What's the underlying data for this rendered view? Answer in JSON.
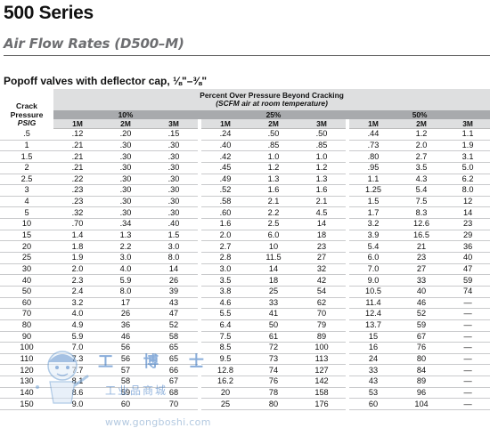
{
  "page": {
    "series_title": "500 Series",
    "subtitle": "Air Flow Rates (D500–M)",
    "section_title": "Popoff valves with deflector cap, ⅛\"–⅜\""
  },
  "table": {
    "crack_header": {
      "line1": "Crack",
      "line2": "Pressure",
      "line3": "PSIG"
    },
    "header_line1": "Percent Over Pressure Beyond Cracking",
    "header_line2": "(SCFM air at room temperature)",
    "groups": [
      "10%",
      "25%",
      "50%"
    ],
    "subcols": [
      "1M",
      "2M",
      "3M"
    ],
    "rows": [
      [
        ".5",
        ".12",
        ".20",
        ".15",
        ".24",
        ".50",
        ".50",
        ".44",
        "1.2",
        "1.1"
      ],
      [
        "1",
        ".21",
        ".30",
        ".30",
        ".40",
        ".85",
        ".85",
        ".73",
        "2.0",
        "1.9"
      ],
      [
        "1.5",
        ".21",
        ".30",
        ".30",
        ".42",
        "1.0",
        "1.0",
        ".80",
        "2.7",
        "3.1"
      ],
      [
        "2",
        ".21",
        ".30",
        ".30",
        ".45",
        "1.2",
        "1.2",
        ".95",
        "3.5",
        "5.0"
      ],
      [
        "2.5",
        ".22",
        ".30",
        ".30",
        ".49",
        "1.3",
        "1.3",
        "1.1",
        "4.3",
        "6.2"
      ],
      [
        "3",
        ".23",
        ".30",
        ".30",
        ".52",
        "1.6",
        "1.6",
        "1.25",
        "5.4",
        "8.0"
      ],
      [
        "4",
        ".23",
        ".30",
        ".30",
        ".58",
        "2.1",
        "2.1",
        "1.5",
        "7.5",
        "12"
      ],
      [
        "5",
        ".32",
        ".30",
        ".30",
        ".60",
        "2.2",
        "4.5",
        "1.7",
        "8.3",
        "14"
      ],
      [
        "10",
        ".70",
        ".34",
        ".40",
        "1.6",
        "2.5",
        "14",
        "3.2",
        "12.6",
        "23"
      ],
      [
        "15",
        "1.4",
        "1.3",
        "1.5",
        "2.0",
        "6.0",
        "18",
        "3.9",
        "16.5",
        "29"
      ],
      [
        "20",
        "1.8",
        "2.2",
        "3.0",
        "2.7",
        "10",
        "23",
        "5.4",
        "21",
        "36"
      ],
      [
        "25",
        "1.9",
        "3.0",
        "8.0",
        "2.8",
        "11.5",
        "27",
        "6.0",
        "23",
        "40"
      ],
      [
        "30",
        "2.0",
        "4.0",
        "14",
        "3.0",
        "14",
        "32",
        "7.0",
        "27",
        "47"
      ],
      [
        "40",
        "2.3",
        "5.9",
        "26",
        "3.5",
        "18",
        "42",
        "9.0",
        "33",
        "59"
      ],
      [
        "50",
        "2.4",
        "8.0",
        "39",
        "3.8",
        "25",
        "54",
        "10.5",
        "40",
        "74"
      ],
      [
        "60",
        "3.2",
        "17",
        "43",
        "4.6",
        "33",
        "62",
        "11.4",
        "46",
        "—"
      ],
      [
        "70",
        "4.0",
        "26",
        "47",
        "5.5",
        "41",
        "70",
        "12.4",
        "52",
        "—"
      ],
      [
        "80",
        "4.9",
        "36",
        "52",
        "6.4",
        "50",
        "79",
        "13.7",
        "59",
        "—"
      ],
      [
        "90",
        "5.9",
        "46",
        "58",
        "7.5",
        "61",
        "89",
        "15",
        "67",
        "—"
      ],
      [
        "100",
        "7.0",
        "56",
        "65",
        "8.5",
        "72",
        "100",
        "16",
        "76",
        "—"
      ],
      [
        "110",
        "7.3",
        "56",
        "65",
        "9.5",
        "73",
        "113",
        "24",
        "80",
        "—"
      ],
      [
        "120",
        "7.7",
        "57",
        "66",
        "12.8",
        "74",
        "127",
        "33",
        "84",
        "—"
      ],
      [
        "130",
        "8.1",
        "58",
        "67",
        "16.2",
        "76",
        "142",
        "43",
        "89",
        "—"
      ],
      [
        "140",
        "8.6",
        "59",
        "68",
        "20",
        "78",
        "158",
        "53",
        "96",
        "—"
      ],
      [
        "150",
        "9.0",
        "60",
        "70",
        "25",
        "80",
        "176",
        "60",
        "104",
        "—"
      ]
    ]
  },
  "watermark": {
    "brand": "工 博 士",
    "tagline": "工业品商城",
    "url": "www.gongboshi.com"
  },
  "colors": {
    "group_header_bg": "#a8aaad",
    "light_header_bg": "#dedfe0",
    "subtitle_gray": "#6d6e71",
    "watermark_blue": "#3b78c2"
  }
}
